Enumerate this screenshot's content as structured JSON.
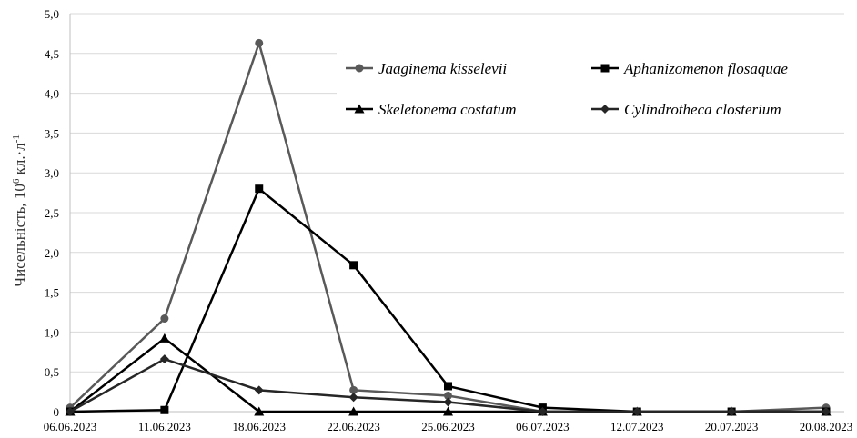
{
  "chart_data": {
    "type": "line",
    "categories": [
      "06.06.2023",
      "11.06.2023",
      "18.06.2023",
      "22.06.2023",
      "25.06.2023",
      "06.07.2023",
      "12.07.2023",
      "20.07.2023",
      "20.08.2023"
    ],
    "series": [
      {
        "name": "Jaaginema kisselevii",
        "marker": "circle",
        "color": "#595959",
        "values": [
          0.05,
          1.17,
          4.63,
          0.27,
          0.2,
          0.0,
          0.0,
          0.0,
          0.05
        ]
      },
      {
        "name": "Aphanizomenon flosaquae",
        "marker": "square",
        "color": "#000000",
        "values": [
          0.0,
          0.02,
          2.8,
          1.84,
          0.32,
          0.05,
          0.0,
          0.0,
          0.0
        ]
      },
      {
        "name": "Skeletonema costatum",
        "marker": "triangle",
        "color": "#000000",
        "values": [
          0.0,
          0.92,
          0.0,
          0.0,
          0.0,
          0.0,
          0.0,
          0.0,
          0.0
        ]
      },
      {
        "name": "Cylindrotheca closterium",
        "marker": "diamond",
        "color": "#262626",
        "values": [
          0.0,
          0.66,
          0.27,
          0.18,
          0.12,
          0.0,
          0.0,
          0.0,
          0.0
        ]
      }
    ],
    "y_ticks": [
      "0",
      "0,5",
      "1,0",
      "1,5",
      "2,0",
      "2,5",
      "3,0",
      "3,5",
      "4,0",
      "4,5",
      "5,0"
    ],
    "ylim": [
      0,
      5
    ],
    "ylabel_prefix": "Чисельність, 10",
    "ylabel_exp": "6",
    "ylabel_suffix": " кл.·л",
    "ylabel_suffix_exp": "-1",
    "grid": true,
    "legend_position": "top-right"
  }
}
